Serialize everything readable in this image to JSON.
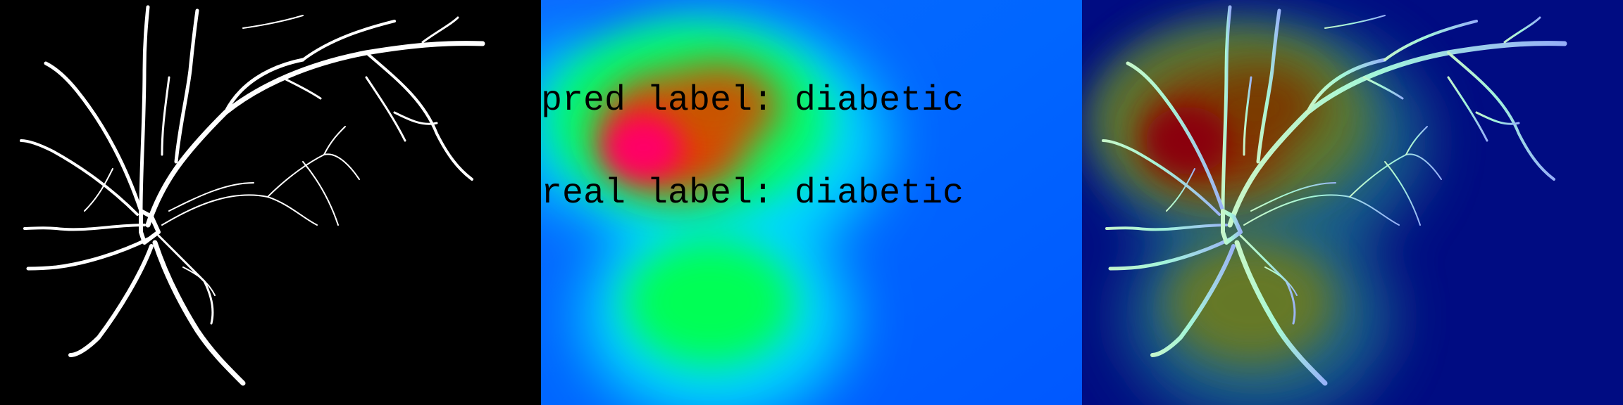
{
  "figure": {
    "panels": [
      {
        "id": "vessel-mask",
        "description_shown": false
      },
      {
        "id": "grad-cam-heatmap",
        "description_shown": false
      },
      {
        "id": "heatmap-overlay",
        "description_shown": false
      }
    ],
    "heatmap_labels": {
      "pred_line": "pred label: diabetic",
      "real_line": "real label: diabetic"
    },
    "colors": {
      "mask_background": "#000000",
      "vessel": "#ffffff",
      "heatmap_low": "#0055ff",
      "heatmap_mid": "#00ff55",
      "heatmap_high": "#ff0055",
      "overlay_background": "#000c82",
      "label_text": "#000000"
    }
  }
}
